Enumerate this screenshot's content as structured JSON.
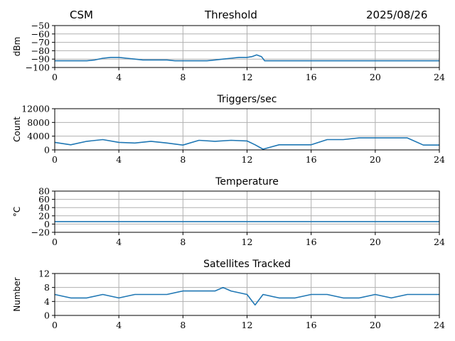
{
  "header": {
    "left": "CSM",
    "center": "Threshold",
    "right": "2025/08/26"
  },
  "colors": {
    "line": "#1f77b4",
    "grid": "#b0b0b0",
    "axes": "#000000"
  },
  "chart_data": [
    {
      "type": "line",
      "title": "",
      "ylabel": "dBm",
      "xlim": [
        0,
        24
      ],
      "ylim": [
        -100,
        -50
      ],
      "xticks": [
        "0",
        "4",
        "8",
        "12",
        "16",
        "20",
        "24"
      ],
      "yticks": [
        "−50",
        "−60",
        "−70",
        "−80",
        "−90",
        "−100"
      ],
      "grid": true,
      "series": [
        {
          "x": [
            0,
            0.5,
            1,
            1.5,
            2,
            2.5,
            3,
            3.5,
            4,
            4.5,
            5,
            5.5,
            6,
            6.5,
            7,
            7.5,
            8,
            8.5,
            9,
            9.5,
            10,
            10.5,
            11,
            11.5,
            12,
            12.3,
            12.6,
            12.9,
            13.1,
            13.5,
            14,
            16,
            18,
            20,
            22,
            24
          ],
          "y": [
            -92,
            -92,
            -92,
            -92,
            -92,
            -91,
            -89,
            -88,
            -88,
            -89,
            -90,
            -91,
            -91,
            -91,
            -91,
            -92,
            -92,
            -92,
            -92,
            -92,
            -91,
            -90,
            -89,
            -88,
            -88,
            -87,
            -85,
            -87,
            -92,
            -92,
            -92,
            -92,
            -92,
            -92,
            -92,
            -92
          ]
        }
      ]
    },
    {
      "type": "line",
      "title": "Triggers/sec",
      "ylabel": "Count",
      "xlim": [
        0,
        24
      ],
      "ylim": [
        0,
        12000
      ],
      "xticks": [
        "0",
        "4",
        "8",
        "12",
        "16",
        "20",
        "24"
      ],
      "yticks": [
        "0",
        "4000",
        "8000",
        "12000"
      ],
      "grid": true,
      "series": [
        {
          "x": [
            0,
            1,
            2,
            3,
            4,
            5,
            6,
            7,
            8,
            9,
            10,
            11,
            12,
            12.5,
            13,
            14,
            15,
            16,
            17,
            18,
            19,
            20,
            21,
            22,
            23,
            24
          ],
          "y": [
            2200,
            1500,
            2500,
            3000,
            2200,
            2000,
            2500,
            2000,
            1400,
            2800,
            2500,
            2800,
            2600,
            1500,
            200,
            1500,
            1500,
            1500,
            3000,
            3000,
            3500,
            3500,
            3500,
            3500,
            1400,
            1400
          ]
        }
      ]
    },
    {
      "type": "line",
      "title": "Temperature",
      "ylabel": "°C",
      "xlim": [
        0,
        24
      ],
      "ylim": [
        -20,
        80
      ],
      "xticks": [
        "0",
        "4",
        "8",
        "12",
        "16",
        "20",
        "24"
      ],
      "yticks": [
        "−20",
        "0",
        "20",
        "40",
        "60",
        "80"
      ],
      "grid": true,
      "series": [
        {
          "x": [
            0,
            4,
            8,
            12,
            16,
            20,
            24
          ],
          "y": [
            6,
            6,
            6,
            6,
            6,
            6,
            6
          ]
        }
      ]
    },
    {
      "type": "line",
      "title": "Satellites Tracked",
      "ylabel": "Number",
      "xlim": [
        0,
        24
      ],
      "ylim": [
        0,
        12
      ],
      "xticks": [
        "0",
        "4",
        "8",
        "12",
        "16",
        "20",
        "24"
      ],
      "yticks": [
        "0",
        "4",
        "8",
        "12"
      ],
      "grid": true,
      "series": [
        {
          "x": [
            0,
            1,
            2,
            3,
            4,
            5,
            6,
            7,
            8,
            9,
            10,
            10.5,
            11,
            12,
            12.5,
            13,
            14,
            15,
            16,
            17,
            18,
            19,
            20,
            21,
            22,
            23,
            24
          ],
          "y": [
            6,
            5,
            5,
            6,
            5,
            6,
            6,
            6,
            7,
            7,
            7,
            8,
            7,
            6,
            3,
            6,
            5,
            5,
            6,
            6,
            5,
            5,
            6,
            5,
            6,
            6,
            6
          ]
        }
      ]
    }
  ]
}
